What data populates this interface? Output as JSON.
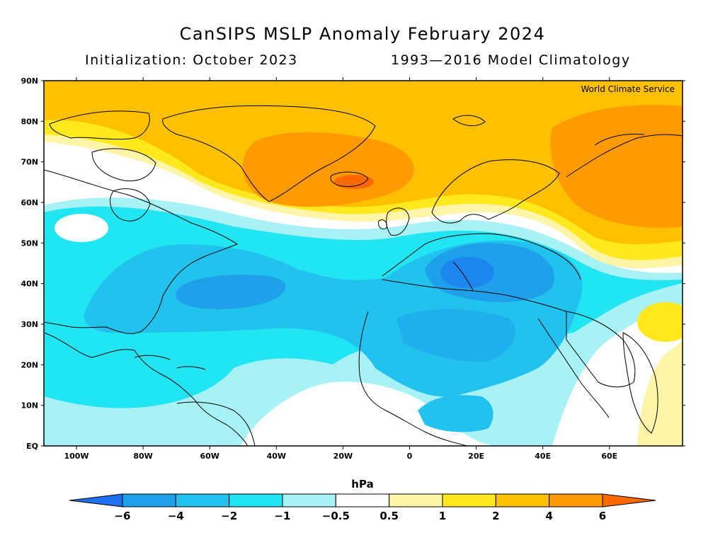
{
  "title": "CanSIPS MSLP Anomaly February 2024",
  "subtitle_left": "Initialization: October 2023",
  "subtitle_right": "1993—2016 Model Climatology",
  "credit": "World Climate Service",
  "lat_labels": [
    "90N",
    "80N",
    "70N",
    "60N",
    "50N",
    "40N",
    "30N",
    "20N",
    "10N",
    "EQ"
  ],
  "lon_labels": [
    "100W",
    "80W",
    "60W",
    "40W",
    "20W",
    "0",
    "20E",
    "40E",
    "60E"
  ],
  "colorbar": {
    "unit": "hPa",
    "ticks": [
      "−6",
      "−4",
      "−2",
      "−1",
      "−0.5",
      "0.5",
      "1",
      "2",
      "4",
      "6"
    ],
    "colors": {
      "below_-6": "#1e6ff0",
      "-6_-4": "#1ea0eb",
      "-4_-2": "#21c3ee",
      "-2_-1": "#21e6f2",
      "-1_-0.5": "#a8f2f6",
      "-0.5_0.5": "#ffffff",
      "0.5_1": "#fff5a8",
      "1_2": "#ffe81e",
      "2_4": "#ffc000",
      "4_6": "#ff9a00",
      "above_6": "#ff6a00"
    }
  }
}
